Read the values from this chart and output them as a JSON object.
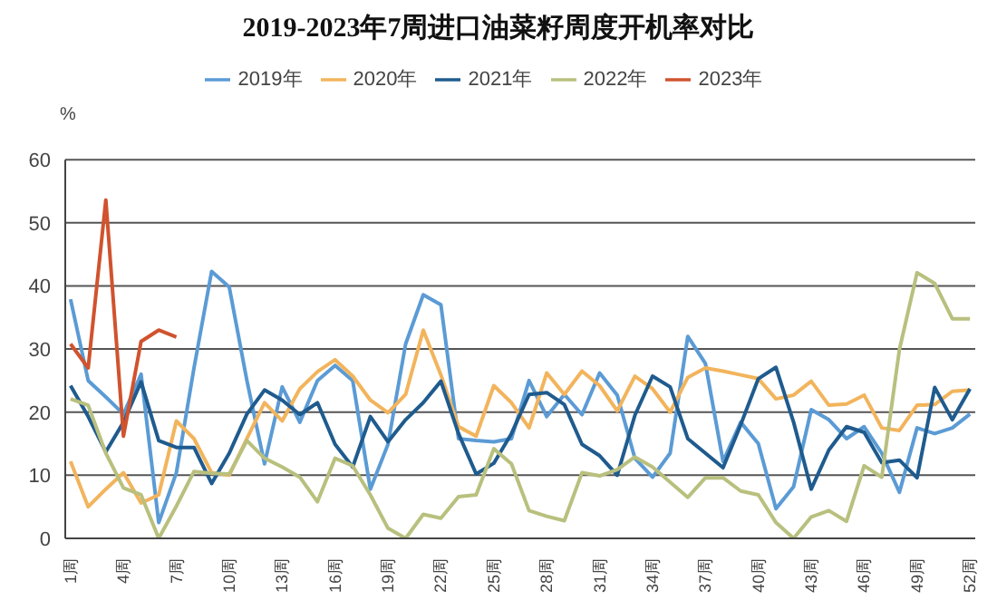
{
  "chart_data": {
    "type": "line",
    "title": "2019-2023年7周进口油菜籽周度开机率对比",
    "ylabel": "%",
    "categories": [
      "1周",
      null,
      null,
      "4周",
      null,
      null,
      "7周",
      null,
      null,
      "10周",
      null,
      null,
      "13周",
      null,
      null,
      "16周",
      null,
      null,
      "19周",
      null,
      null,
      "22周",
      null,
      null,
      "25周",
      null,
      null,
      "28周",
      null,
      null,
      "31周",
      null,
      null,
      "34周",
      null,
      null,
      "37周",
      null,
      null,
      "40周",
      null,
      null,
      "43周",
      null,
      null,
      "46周",
      null,
      null,
      "49周",
      null,
      null,
      "52周"
    ],
    "ylim": [
      0,
      60
    ],
    "yticks": [
      0,
      10,
      20,
      30,
      40,
      50,
      60
    ],
    "grid": "y",
    "legend": "top",
    "marker": "none",
    "line_style": "solid",
    "series": [
      {
        "name": "2019年",
        "color": "#5b9bd5",
        "values": [
          37.9,
          25,
          22.4,
          19.7,
          26,
          2.5,
          10.4,
          27,
          42.3,
          39.8,
          25,
          11.8,
          24,
          18.4,
          25,
          27.4,
          25,
          7.8,
          14.9,
          30.8,
          38.6,
          37,
          15.8,
          15.5,
          15.3,
          15.8,
          25,
          19.3,
          22.8,
          19.6,
          26.2,
          22.7,
          12.7,
          9.7,
          13.5,
          32,
          27.7,
          12.2,
          18.4,
          15,
          4.7,
          8.2,
          20.4,
          18.8,
          15.8,
          17.7,
          13.5,
          7.3,
          17.5,
          16.6,
          17.5,
          19.7
        ]
      },
      {
        "name": "2020年",
        "color": "#f2b45c",
        "values": [
          12.2,
          5,
          7.8,
          10.4,
          5.6,
          6.9,
          18.6,
          15.8,
          10.4,
          10,
          15.8,
          21.5,
          18.6,
          23.7,
          26.4,
          28.3,
          25.7,
          21.9,
          19.9,
          22.8,
          33,
          25.9,
          17.7,
          16.2,
          24.2,
          21.5,
          17.5,
          26.2,
          22.8,
          26.5,
          24.2,
          20.2,
          25.7,
          23.7,
          20,
          25.5,
          27,
          26.5,
          25.9,
          25.3,
          22.1,
          22.7,
          24.9,
          21.1,
          21.3,
          22.7,
          17.5,
          17.1,
          21.1,
          21.2,
          23.3,
          23.5
        ]
      },
      {
        "name": "2021年",
        "color": "#1f5b8e",
        "values": [
          24.2,
          19.3,
          13.7,
          18.4,
          24.8,
          15.5,
          14.4,
          14.4,
          8.7,
          13.5,
          19.7,
          23.5,
          21.9,
          19.6,
          21.5,
          14.9,
          11.3,
          19.3,
          15.3,
          18.8,
          21.5,
          24.9,
          16.6,
          10.2,
          11.9,
          16.6,
          22.8,
          23.1,
          21.2,
          14.9,
          13.1,
          10,
          19.5,
          25.7,
          24,
          15.8,
          13.5,
          11.2,
          18,
          25.3,
          27.1,
          18.4,
          7.8,
          14,
          17.7,
          16.8,
          12,
          12.4,
          9.6,
          23.9,
          18.8,
          23.7
        ]
      },
      {
        "name": "2022年",
        "color": "#b9c07e",
        "values": [
          22.1,
          21.1,
          13.5,
          8,
          6.9,
          0,
          5.1,
          10.6,
          10.3,
          10.2,
          15.5,
          12.7,
          11.3,
          9.7,
          5.8,
          12.7,
          11.5,
          6.9,
          1.6,
          0,
          3.8,
          3.2,
          6.6,
          6.9,
          14.2,
          11.8,
          4.4,
          3.5,
          2.8,
          10.4,
          9.9,
          10.9,
          12.9,
          11.3,
          8.9,
          6.5,
          9.6,
          9.6,
          7.5,
          6.9,
          2.5,
          0,
          3.4,
          4.4,
          2.7,
          11.5,
          9.7,
          29.9,
          42.1,
          40.4,
          34.8,
          34.8
        ]
      },
      {
        "name": "2023年",
        "color": "#d0532e",
        "values": [
          30.8,
          27,
          53.6,
          16.2,
          31.2,
          33,
          31.9,
          null,
          null,
          null,
          null,
          null,
          null,
          null,
          null,
          null,
          null,
          null,
          null,
          null,
          null,
          null,
          null,
          null,
          null,
          null,
          null,
          null,
          null,
          null,
          null,
          null,
          null,
          null,
          null,
          null,
          null,
          null,
          null,
          null,
          null,
          null,
          null,
          null,
          null,
          null,
          null,
          null,
          null,
          null,
          null,
          null
        ]
      }
    ]
  }
}
